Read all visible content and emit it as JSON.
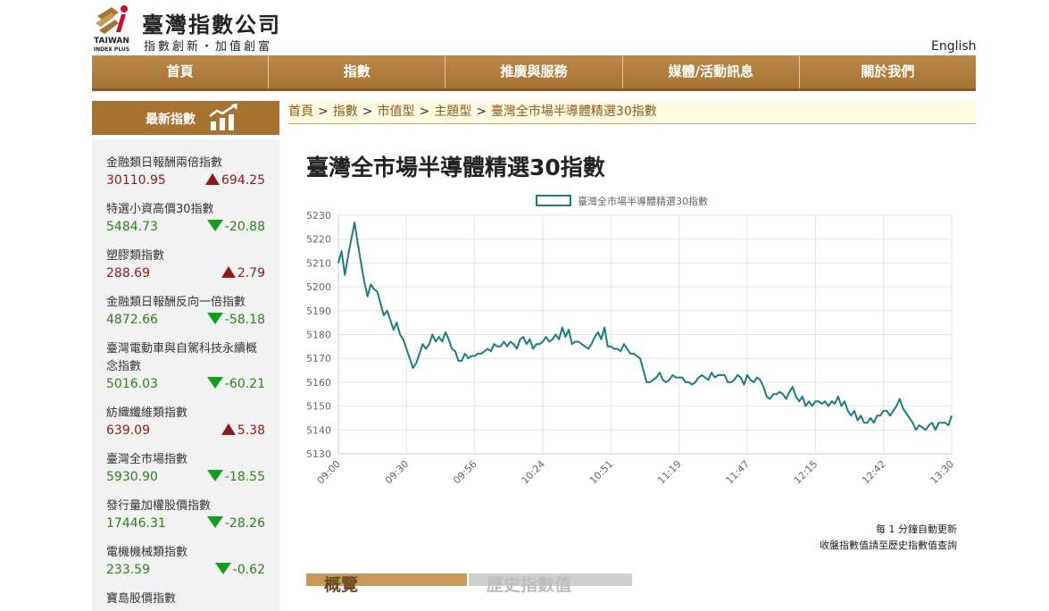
{
  "brand": {
    "name": "臺灣指數公司",
    "tagline": "指數創新・加值創富",
    "english_logo_line1": "TAIWAN",
    "english_logo_line2": "INDEX PLUS"
  },
  "header": {
    "lang_link": "English"
  },
  "nav": {
    "items": [
      "首頁",
      "指數",
      "推廣與服務",
      "媒體/活動訊息",
      "關於我們"
    ]
  },
  "sidebar": {
    "title": "最新指數",
    "items": [
      {
        "name": "金融類日報酬兩倍指數",
        "value": "30110.95",
        "change": "694.25",
        "direction": "up"
      },
      {
        "name": "特選小資高價30指數",
        "value": "5484.73",
        "change": "-20.88",
        "direction": "down"
      },
      {
        "name": "塑膠類指數",
        "value": "288.69",
        "change": "2.79",
        "direction": "up"
      },
      {
        "name": "金融類日報酬反向一倍指數",
        "value": "4872.66",
        "change": "-58.18",
        "direction": "down"
      },
      {
        "name": "臺灣電動車與自駕科技永續概念指數",
        "value": "5016.03",
        "change": "-60.21",
        "direction": "down"
      },
      {
        "name": "紡織纖維類指數",
        "value": "639.09",
        "change": "5.38",
        "direction": "up"
      },
      {
        "name": "臺灣全市場指數",
        "value": "5930.90",
        "change": "-18.55",
        "direction": "down"
      },
      {
        "name": "發行量加權股價指數",
        "value": "17446.31",
        "change": "-28.26",
        "direction": "down"
      },
      {
        "name": "電機機械類指數",
        "value": "233.59",
        "change": "-0.62",
        "direction": "down"
      },
      {
        "name": "寶島股價指數",
        "value": "",
        "change": "",
        "direction": ""
      }
    ]
  },
  "breadcrumb": [
    "首頁",
    "指數",
    "市值型",
    "主題型",
    "臺灣全市場半導體精選30指數"
  ],
  "breadcrumb_sep": ">",
  "main": {
    "title": "臺灣全市場半導體精選30指數",
    "note_line1": "每 1 分鐘自動更新",
    "note_line2": "收盤指數值請至歷史指數值查詢",
    "tabs": [
      "概覽",
      "歷史指數值"
    ]
  },
  "colors": {
    "line": "#1e7b7b",
    "accent": "#a77331",
    "up": "#8b1a1a",
    "down": "#159c1c"
  },
  "chart_data": {
    "type": "line",
    "legend": "臺灣全市場半導體精選30指數",
    "legend_position": "top-center",
    "grid": true,
    "x_ticks": [
      "09:00",
      "09:30",
      "09:56",
      "10:24",
      "10:51",
      "11:19",
      "11:47",
      "12:15",
      "12:42",
      "13:30"
    ],
    "y_ticks": [
      5130,
      5140,
      5150,
      5160,
      5170,
      5180,
      5190,
      5200,
      5210,
      5220,
      5230
    ],
    "ylim": [
      5130,
      5230
    ],
    "x_minutes_range": [
      0,
      270
    ],
    "points": [
      [
        0,
        5210
      ],
      [
        1,
        5215
      ],
      [
        2,
        5205
      ],
      [
        3,
        5213
      ],
      [
        4,
        5220
      ],
      [
        5,
        5227
      ],
      [
        6,
        5218
      ],
      [
        7,
        5210
      ],
      [
        8,
        5202
      ],
      [
        9,
        5196
      ],
      [
        10,
        5201
      ],
      [
        11,
        5199
      ],
      [
        12,
        5198
      ],
      [
        13,
        5193
      ],
      [
        14,
        5188
      ],
      [
        15,
        5190
      ],
      [
        16,
        5186
      ],
      [
        17,
        5182
      ],
      [
        18,
        5185
      ],
      [
        19,
        5180
      ],
      [
        20,
        5178
      ],
      [
        21,
        5174
      ],
      [
        22,
        5170
      ],
      [
        23,
        5166
      ],
      [
        24,
        5168
      ],
      [
        25,
        5172
      ],
      [
        26,
        5176
      ],
      [
        27,
        5174
      ],
      [
        28,
        5176
      ],
      [
        29,
        5180
      ],
      [
        30,
        5177
      ],
      [
        31,
        5179
      ],
      [
        32,
        5177
      ],
      [
        33,
        5181
      ],
      [
        34,
        5178
      ],
      [
        35,
        5174
      ],
      [
        36,
        5173
      ],
      [
        37,
        5169
      ],
      [
        38,
        5169
      ],
      [
        39,
        5172
      ],
      [
        40,
        5170
      ],
      [
        41,
        5171
      ],
      [
        42,
        5171
      ],
      [
        43,
        5172
      ],
      [
        44,
        5172
      ],
      [
        45,
        5173
      ],
      [
        46,
        5174
      ],
      [
        47,
        5173
      ],
      [
        48,
        5176
      ],
      [
        49,
        5175
      ],
      [
        50,
        5175
      ],
      [
        51,
        5177
      ],
      [
        52,
        5175
      ],
      [
        53,
        5177
      ],
      [
        54,
        5176
      ],
      [
        55,
        5174
      ],
      [
        56,
        5178
      ],
      [
        57,
        5179
      ],
      [
        58,
        5176
      ],
      [
        59,
        5178
      ],
      [
        60,
        5174
      ],
      [
        61,
        5176
      ],
      [
        62,
        5176
      ],
      [
        63,
        5177
      ],
      [
        64,
        5179
      ],
      [
        65,
        5177
      ],
      [
        66,
        5178
      ],
      [
        67,
        5180
      ],
      [
        68,
        5178
      ],
      [
        69,
        5183
      ],
      [
        70,
        5179
      ],
      [
        71,
        5182
      ],
      [
        72,
        5176
      ],
      [
        73,
        5177
      ],
      [
        74,
        5177
      ],
      [
        75,
        5176
      ],
      [
        76,
        5175
      ],
      [
        77,
        5174
      ],
      [
        78,
        5176
      ],
      [
        79,
        5179
      ],
      [
        80,
        5181
      ],
      [
        81,
        5178
      ],
      [
        82,
        5183
      ],
      [
        83,
        5175
      ],
      [
        84,
        5175
      ],
      [
        85,
        5174
      ],
      [
        86,
        5174
      ],
      [
        87,
        5173
      ],
      [
        88,
        5176
      ],
      [
        89,
        5174
      ],
      [
        90,
        5172
      ],
      [
        91,
        5172
      ],
      [
        92,
        5171
      ],
      [
        93,
        5170
      ],
      [
        94,
        5165
      ],
      [
        95,
        5160
      ],
      [
        96,
        5160
      ],
      [
        97,
        5161
      ],
      [
        98,
        5162
      ],
      [
        99,
        5164
      ],
      [
        100,
        5161
      ],
      [
        101,
        5160
      ],
      [
        102,
        5161
      ],
      [
        103,
        5163
      ],
      [
        104,
        5162
      ],
      [
        105,
        5162
      ],
      [
        106,
        5162
      ],
      [
        107,
        5160
      ],
      [
        108,
        5160
      ],
      [
        109,
        5159
      ],
      [
        110,
        5160
      ],
      [
        111,
        5162
      ],
      [
        112,
        5163
      ],
      [
        113,
        5162
      ],
      [
        114,
        5161
      ],
      [
        115,
        5164
      ],
      [
        116,
        5162
      ],
      [
        117,
        5163
      ],
      [
        118,
        5163
      ],
      [
        119,
        5163
      ],
      [
        120,
        5160
      ],
      [
        121,
        5160
      ],
      [
        122,
        5161
      ],
      [
        123,
        5163
      ],
      [
        124,
        5162
      ],
      [
        125,
        5159
      ],
      [
        126,
        5163
      ],
      [
        127,
        5161
      ],
      [
        128,
        5160
      ],
      [
        129,
        5162
      ],
      [
        130,
        5161
      ],
      [
        131,
        5158
      ],
      [
        132,
        5154
      ],
      [
        133,
        5153
      ],
      [
        134,
        5155
      ],
      [
        135,
        5155
      ],
      [
        136,
        5156
      ],
      [
        137,
        5155
      ],
      [
        138,
        5153
      ],
      [
        139,
        5156
      ],
      [
        140,
        5158
      ],
      [
        141,
        5154
      ],
      [
        142,
        5152
      ],
      [
        143,
        5154
      ],
      [
        144,
        5150
      ],
      [
        145,
        5152
      ],
      [
        146,
        5150
      ],
      [
        147,
        5152
      ],
      [
        148,
        5152
      ],
      [
        149,
        5151
      ],
      [
        150,
        5152
      ],
      [
        151,
        5150
      ],
      [
        152,
        5152
      ],
      [
        153,
        5151
      ],
      [
        154,
        5154
      ],
      [
        155,
        5150
      ],
      [
        156,
        5152
      ],
      [
        157,
        5148
      ],
      [
        158,
        5146
      ],
      [
        159,
        5148
      ],
      [
        160,
        5144
      ],
      [
        161,
        5146
      ],
      [
        162,
        5143
      ],
      [
        163,
        5143
      ],
      [
        164,
        5145
      ],
      [
        165,
        5143
      ],
      [
        166,
        5146
      ],
      [
        167,
        5146
      ],
      [
        168,
        5148
      ],
      [
        169,
        5148
      ],
      [
        170,
        5146
      ],
      [
        171,
        5148
      ],
      [
        172,
        5150
      ],
      [
        173,
        5153
      ],
      [
        174,
        5149
      ],
      [
        175,
        5147
      ],
      [
        176,
        5145
      ],
      [
        177,
        5143
      ],
      [
        178,
        5140
      ],
      [
        179,
        5142
      ],
      [
        180,
        5141
      ],
      [
        181,
        5140
      ],
      [
        182,
        5142
      ],
      [
        183,
        5143
      ],
      [
        184,
        5140
      ],
      [
        185,
        5143
      ],
      [
        186,
        5143
      ],
      [
        187,
        5143
      ],
      [
        188,
        5142
      ],
      [
        189,
        5146
      ]
    ]
  }
}
